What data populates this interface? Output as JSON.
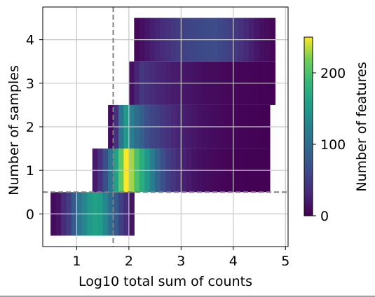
{
  "chart_data": {
    "type": "heatmap",
    "title": "",
    "xlabel": "Log10 total sum of counts",
    "ylabel": "Number of samples",
    "xlim": [
      0.35,
      5.05
    ],
    "ylim": [
      -0.75,
      4.75
    ],
    "x_ticks": [
      "1",
      "2",
      "3",
      "4",
      "5"
    ],
    "y_ticks": [
      "0",
      "1",
      "2",
      "3",
      "4"
    ],
    "grid": true,
    "colormap": "viridis",
    "colorbar": {
      "label": "Number of features",
      "range": [
        0,
        250
      ],
      "ticks": [
        "0",
        "100",
        "200"
      ]
    },
    "threshold_lines": {
      "x": 1.7,
      "y": 0.5,
      "color": "#808080",
      "style": "dashed"
    },
    "bin_width": 0.1,
    "rows": [
      {
        "y": 0,
        "x_start": 0.5,
        "values": [
          8,
          15,
          35,
          50,
          80,
          110,
          130,
          150,
          160,
          155,
          130,
          100,
          80,
          55,
          35,
          15
        ]
      },
      {
        "y": 1,
        "x_start": 1.3,
        "values": [
          20,
          40,
          70,
          110,
          160,
          210,
          250,
          230,
          200,
          175,
          150,
          120,
          90,
          70,
          55,
          45,
          35,
          25,
          20,
          15,
          12,
          10,
          8,
          6,
          5,
          4,
          3,
          2,
          2,
          1,
          1,
          1,
          1,
          1
        ]
      },
      {
        "y": 2,
        "x_start": 1.6,
        "values": [
          10,
          40,
          110,
          150,
          120,
          100,
          85,
          70,
          60,
          55,
          45,
          40,
          32,
          28,
          24,
          20,
          18,
          14,
          12,
          10,
          8,
          7,
          6,
          5,
          4,
          3,
          3,
          2,
          2,
          1,
          1
        ]
      },
      {
        "y": 3,
        "x_start": 2.0,
        "values": [
          12,
          30,
          45,
          40,
          35,
          30,
          28,
          25,
          22,
          20,
          18,
          16,
          14,
          12,
          10,
          9,
          8,
          7,
          6,
          5,
          5,
          4,
          4,
          3,
          3,
          2,
          2,
          1
        ]
      },
      {
        "y": 4,
        "x_start": 2.1,
        "values": [
          6,
          12,
          18,
          24,
          30,
          35,
          40,
          45,
          50,
          55,
          58,
          60,
          62,
          64,
          65,
          66,
          62,
          58,
          52,
          46,
          40,
          32,
          25,
          18,
          12,
          8,
          5
        ]
      }
    ]
  }
}
